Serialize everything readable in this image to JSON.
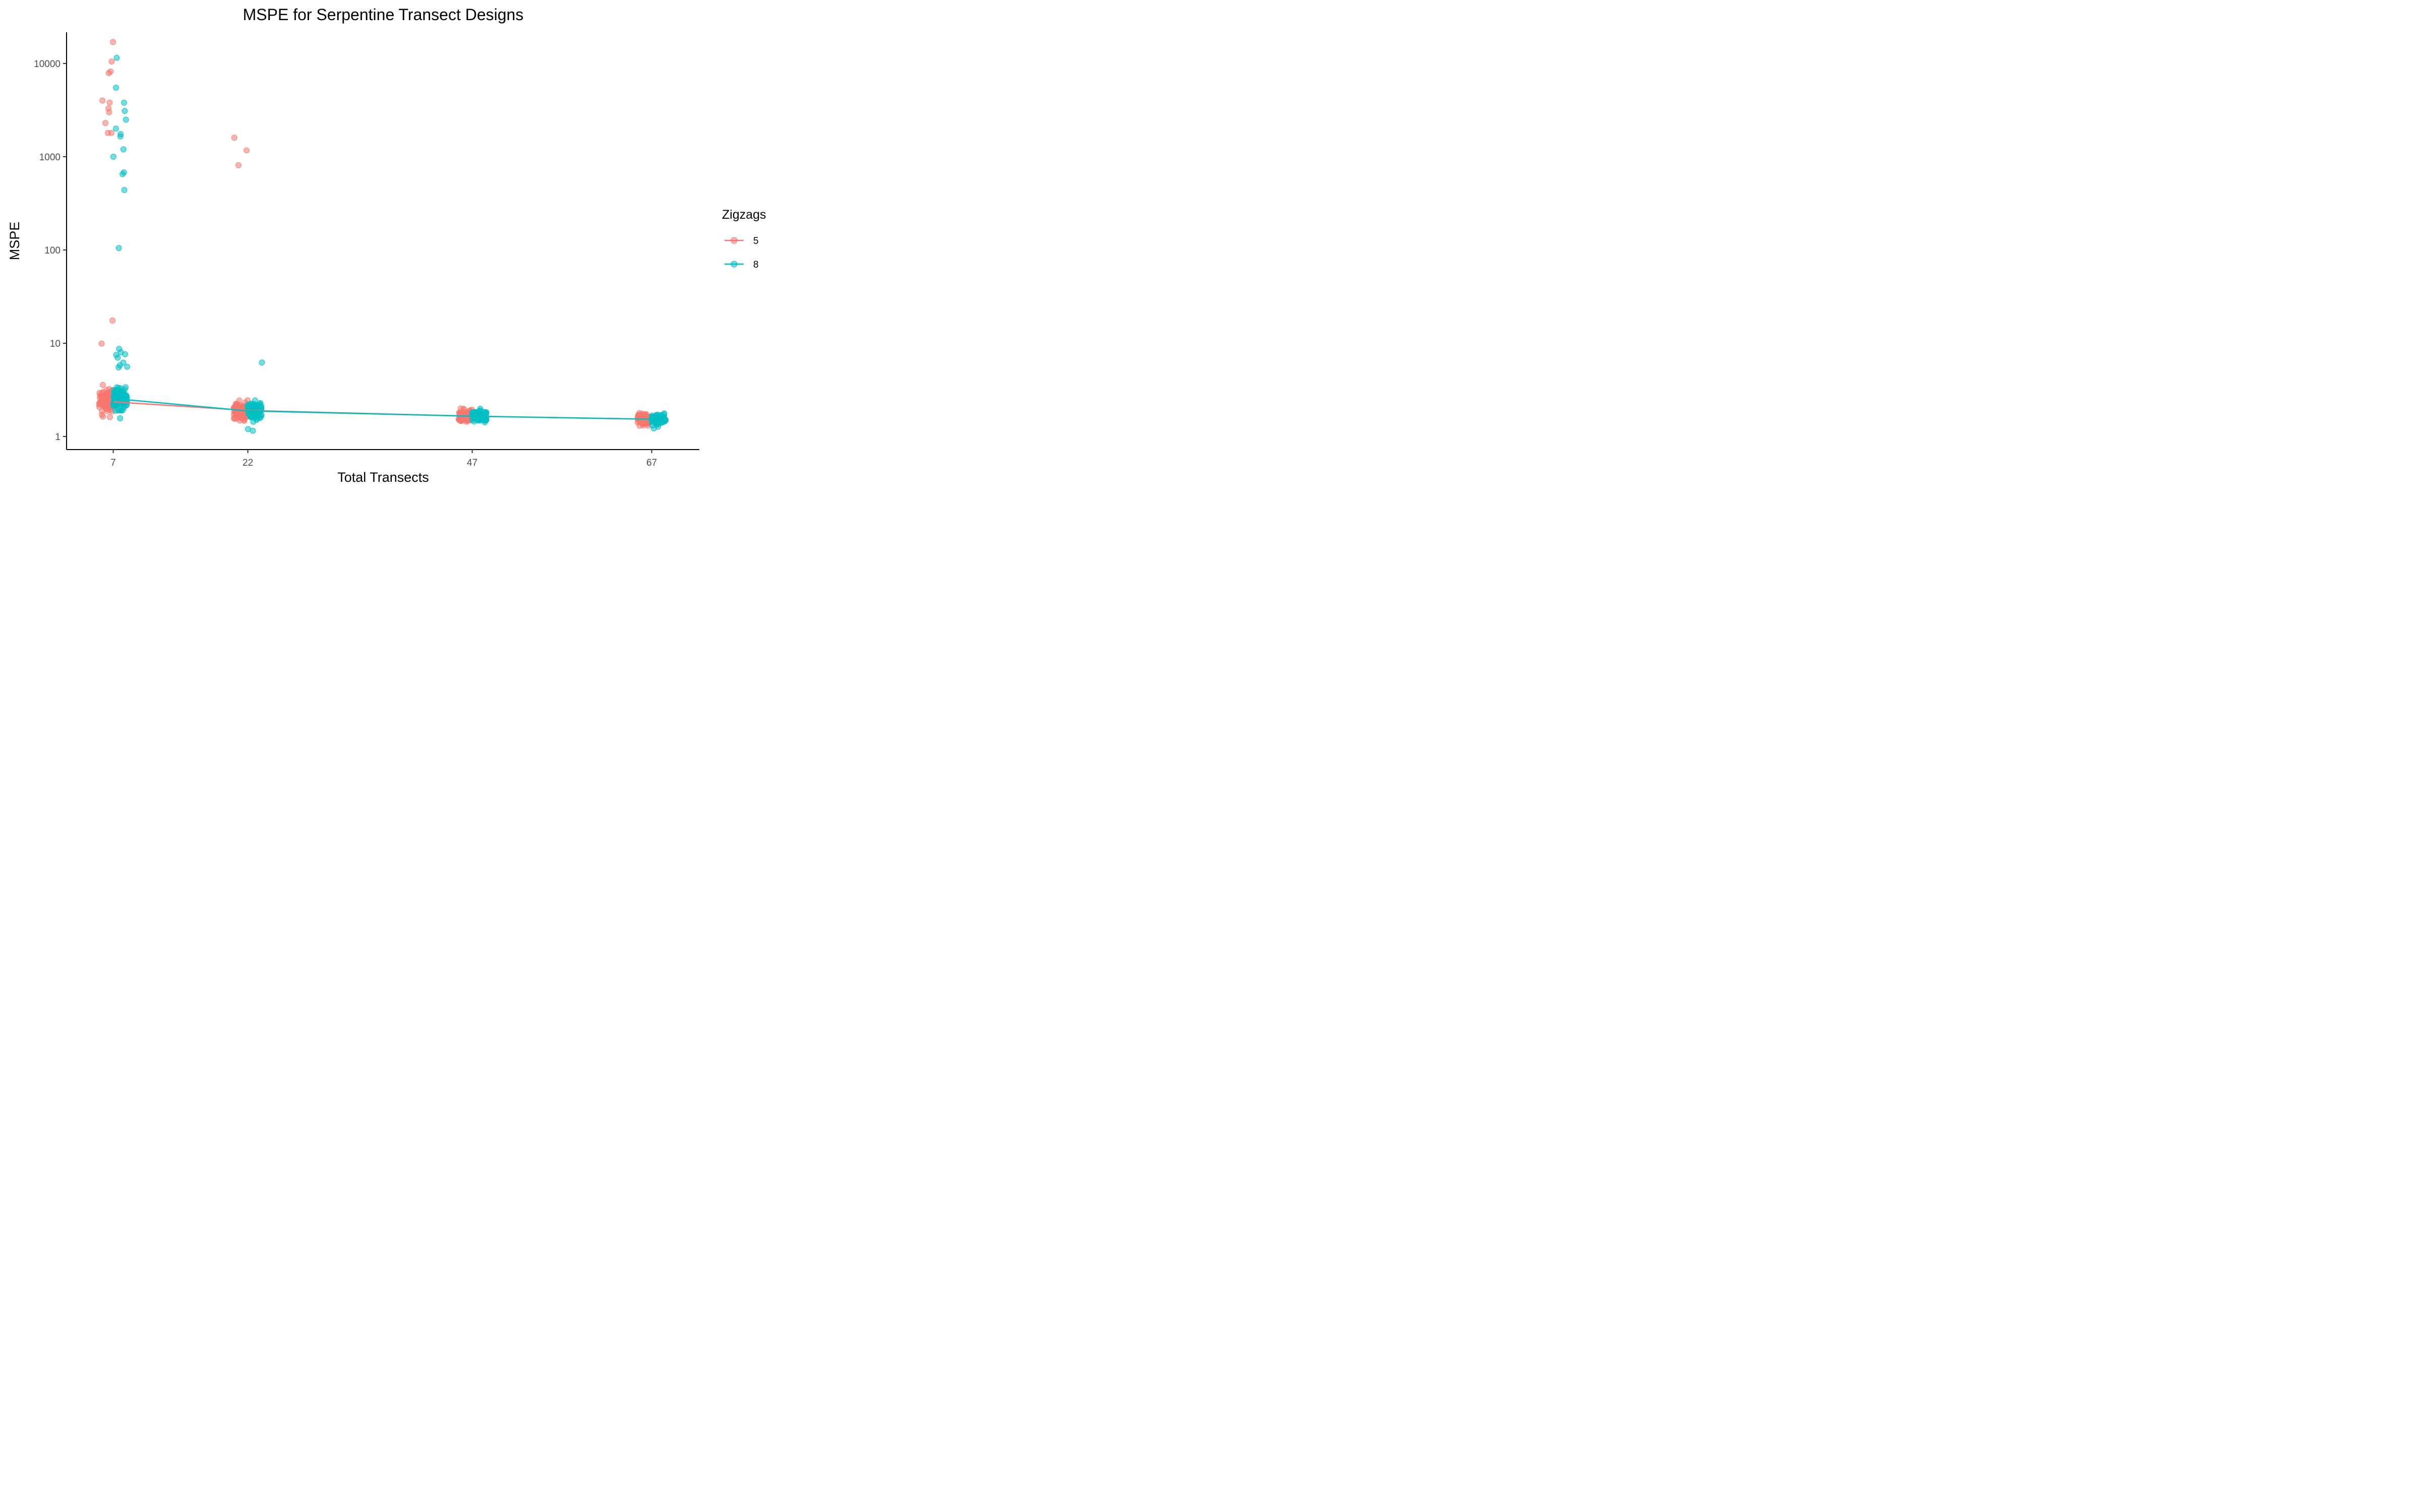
{
  "chart_data": {
    "type": "scatter",
    "title": "MSPE for Serpentine Transect Designs",
    "xlabel": "Total Transects",
    "ylabel": "MSPE",
    "y_scale": "log10",
    "ylim": [
      0.75,
      20000
    ],
    "yticks": [
      1,
      10,
      100,
      1000,
      10000
    ],
    "ytick_labels": [
      "1",
      "10",
      "100",
      "1000",
      "10000"
    ],
    "xticks": [
      7,
      22,
      47,
      67
    ],
    "xtick_labels": [
      "7",
      "22",
      "47",
      "67"
    ],
    "xlim": [
      1.8,
      72.3
    ],
    "grid": false,
    "legend": {
      "title": "Zigzags",
      "position": "right"
    },
    "series": [
      {
        "name": "5",
        "color": "#F8766D",
        "mean_line": {
          "x": [
            7,
            22,
            47,
            67
          ],
          "y": [
            2.35,
            1.9,
            1.65,
            1.53
          ]
        },
        "points": [
          {
            "x": 7,
            "outliers": [
              17000,
              10500,
              8200,
              7900,
              4000,
              3300,
              3000,
              2300,
              1800,
              1800,
              3800,
              17.5,
              9.9
            ]
          },
          {
            "x": 22,
            "outliers": [
              1600,
              1170,
              810
            ]
          },
          {
            "x": 47,
            "outliers": []
          },
          {
            "x": 67,
            "outliers": []
          }
        ]
      },
      {
        "name": "8",
        "color": "#00BFC4",
        "mean_line": {
          "x": [
            7,
            22,
            47,
            67
          ],
          "y": [
            2.55,
            1.88,
            1.65,
            1.53
          ]
        },
        "points": [
          {
            "x": 7,
            "outliers": [
              11500,
              5500,
              3800,
              3100,
              2500,
              2000,
              1750,
              1650,
              1200,
              1000,
              680,
              650,
              440,
              105,
              8.7,
              8.0,
              7.6,
              7.5,
              7.0,
              5.8,
              5.6,
              5.5,
              6.2
            ]
          },
          {
            "x": 22,
            "outliers": [
              6.2,
              1.2,
              1.15
            ]
          },
          {
            "x": 47,
            "outliers": []
          },
          {
            "x": 67,
            "outliers": []
          }
        ]
      }
    ]
  }
}
